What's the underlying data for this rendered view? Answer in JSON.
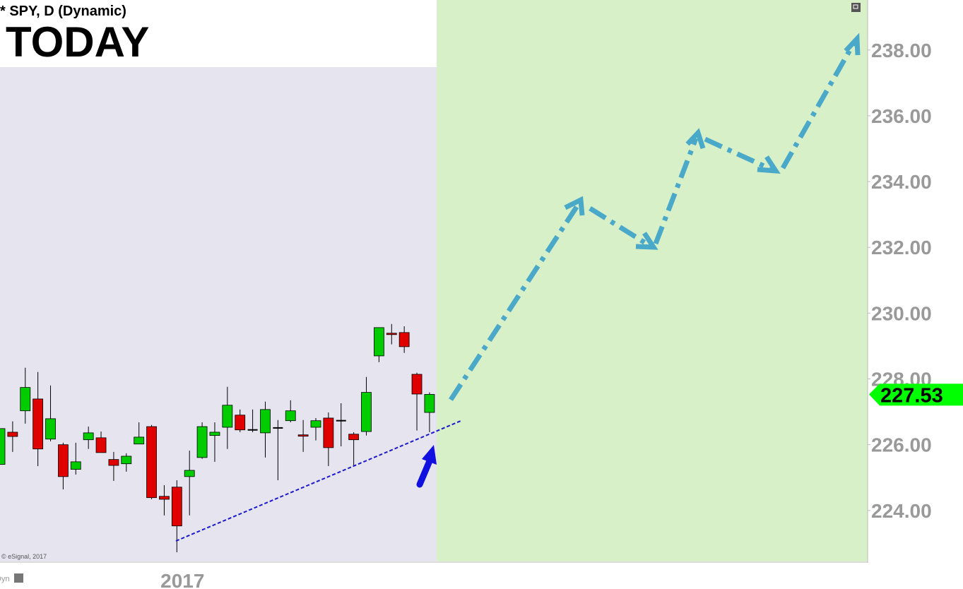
{
  "chart_data": {
    "type": "candlestick",
    "title": "* SPY, D (Dynamic)",
    "annotation": "TODAY",
    "watermark": "© eSignal, 2017",
    "footer": "Dyn",
    "categories": [
      null,
      null,
      null,
      null,
      null,
      null,
      null,
      null,
      null,
      null,
      null,
      null,
      null,
      null,
      "2017",
      null,
      null,
      null,
      null,
      null,
      null,
      null,
      null,
      null,
      null,
      null,
      null,
      null,
      null,
      null,
      null,
      null,
      null,
      null,
      null
    ],
    "open": [
      225.4,
      226.38,
      227.03,
      227.39,
      226.17,
      226.0,
      225.25,
      226.15,
      226.21,
      225.55,
      225.42,
      226.02,
      226.55,
      224.43,
      224.71,
      225.03,
      225.61,
      226.28,
      226.53,
      226.9,
      226.45,
      226.36,
      226.51,
      226.73,
      226.3,
      226.53,
      226.81,
      226.73,
      226.32,
      226.4,
      228.7,
      229.39,
      229.41,
      228.14,
      226.98
    ],
    "high": [
      226.49,
      226.71,
      228.34,
      228.21,
      227.8,
      226.06,
      226.06,
      226.55,
      226.4,
      225.78,
      225.74,
      226.68,
      226.6,
      224.77,
      224.92,
      225.82,
      226.68,
      226.68,
      227.76,
      227.07,
      227.07,
      227.31,
      226.75,
      227.35,
      226.75,
      226.81,
      226.98,
      227.26,
      226.38,
      228.06,
      229.56,
      229.67,
      229.6,
      228.19,
      227.59
    ],
    "low": [
      225.4,
      225.78,
      226.64,
      225.35,
      226.1,
      224.64,
      225.09,
      225.87,
      225.76,
      224.9,
      225.18,
      226.02,
      224.34,
      223.85,
      222.73,
      223.85,
      225.57,
      225.48,
      225.87,
      226.38,
      226.38,
      225.61,
      224.92,
      226.68,
      225.78,
      226.13,
      225.35,
      225.95,
      225.35,
      226.28,
      228.51,
      229.05,
      228.79,
      226.43,
      226.38
    ],
    "close": [
      226.49,
      226.25,
      227.74,
      225.87,
      226.79,
      225.03,
      225.48,
      226.36,
      225.76,
      225.37,
      225.65,
      226.23,
      224.39,
      224.34,
      223.53,
      225.22,
      226.55,
      226.38,
      227.2,
      226.45,
      226.45,
      227.07,
      226.51,
      227.03,
      226.26,
      226.73,
      225.91,
      226.73,
      226.15,
      227.59,
      229.56,
      229.35,
      228.98,
      227.54,
      227.53
    ],
    "up_color": "#00cc00",
    "down_color": "#e00000",
    "last_price": 227.53,
    "last_price_color": "#00ff00",
    "ylim": [
      222.45,
      239.52
    ],
    "yticks": [
      {
        "value": 224,
        "label": "224.00"
      },
      {
        "value": 226,
        "label": "226.00"
      },
      {
        "value": 228,
        "label": "228.00"
      },
      {
        "value": 230,
        "label": "230.00"
      },
      {
        "value": 232,
        "label": "232.00"
      },
      {
        "value": 234,
        "label": "234.00"
      },
      {
        "value": 236,
        "label": "236.00"
      },
      {
        "value": 238,
        "label": "238.00"
      }
    ]
  }
}
